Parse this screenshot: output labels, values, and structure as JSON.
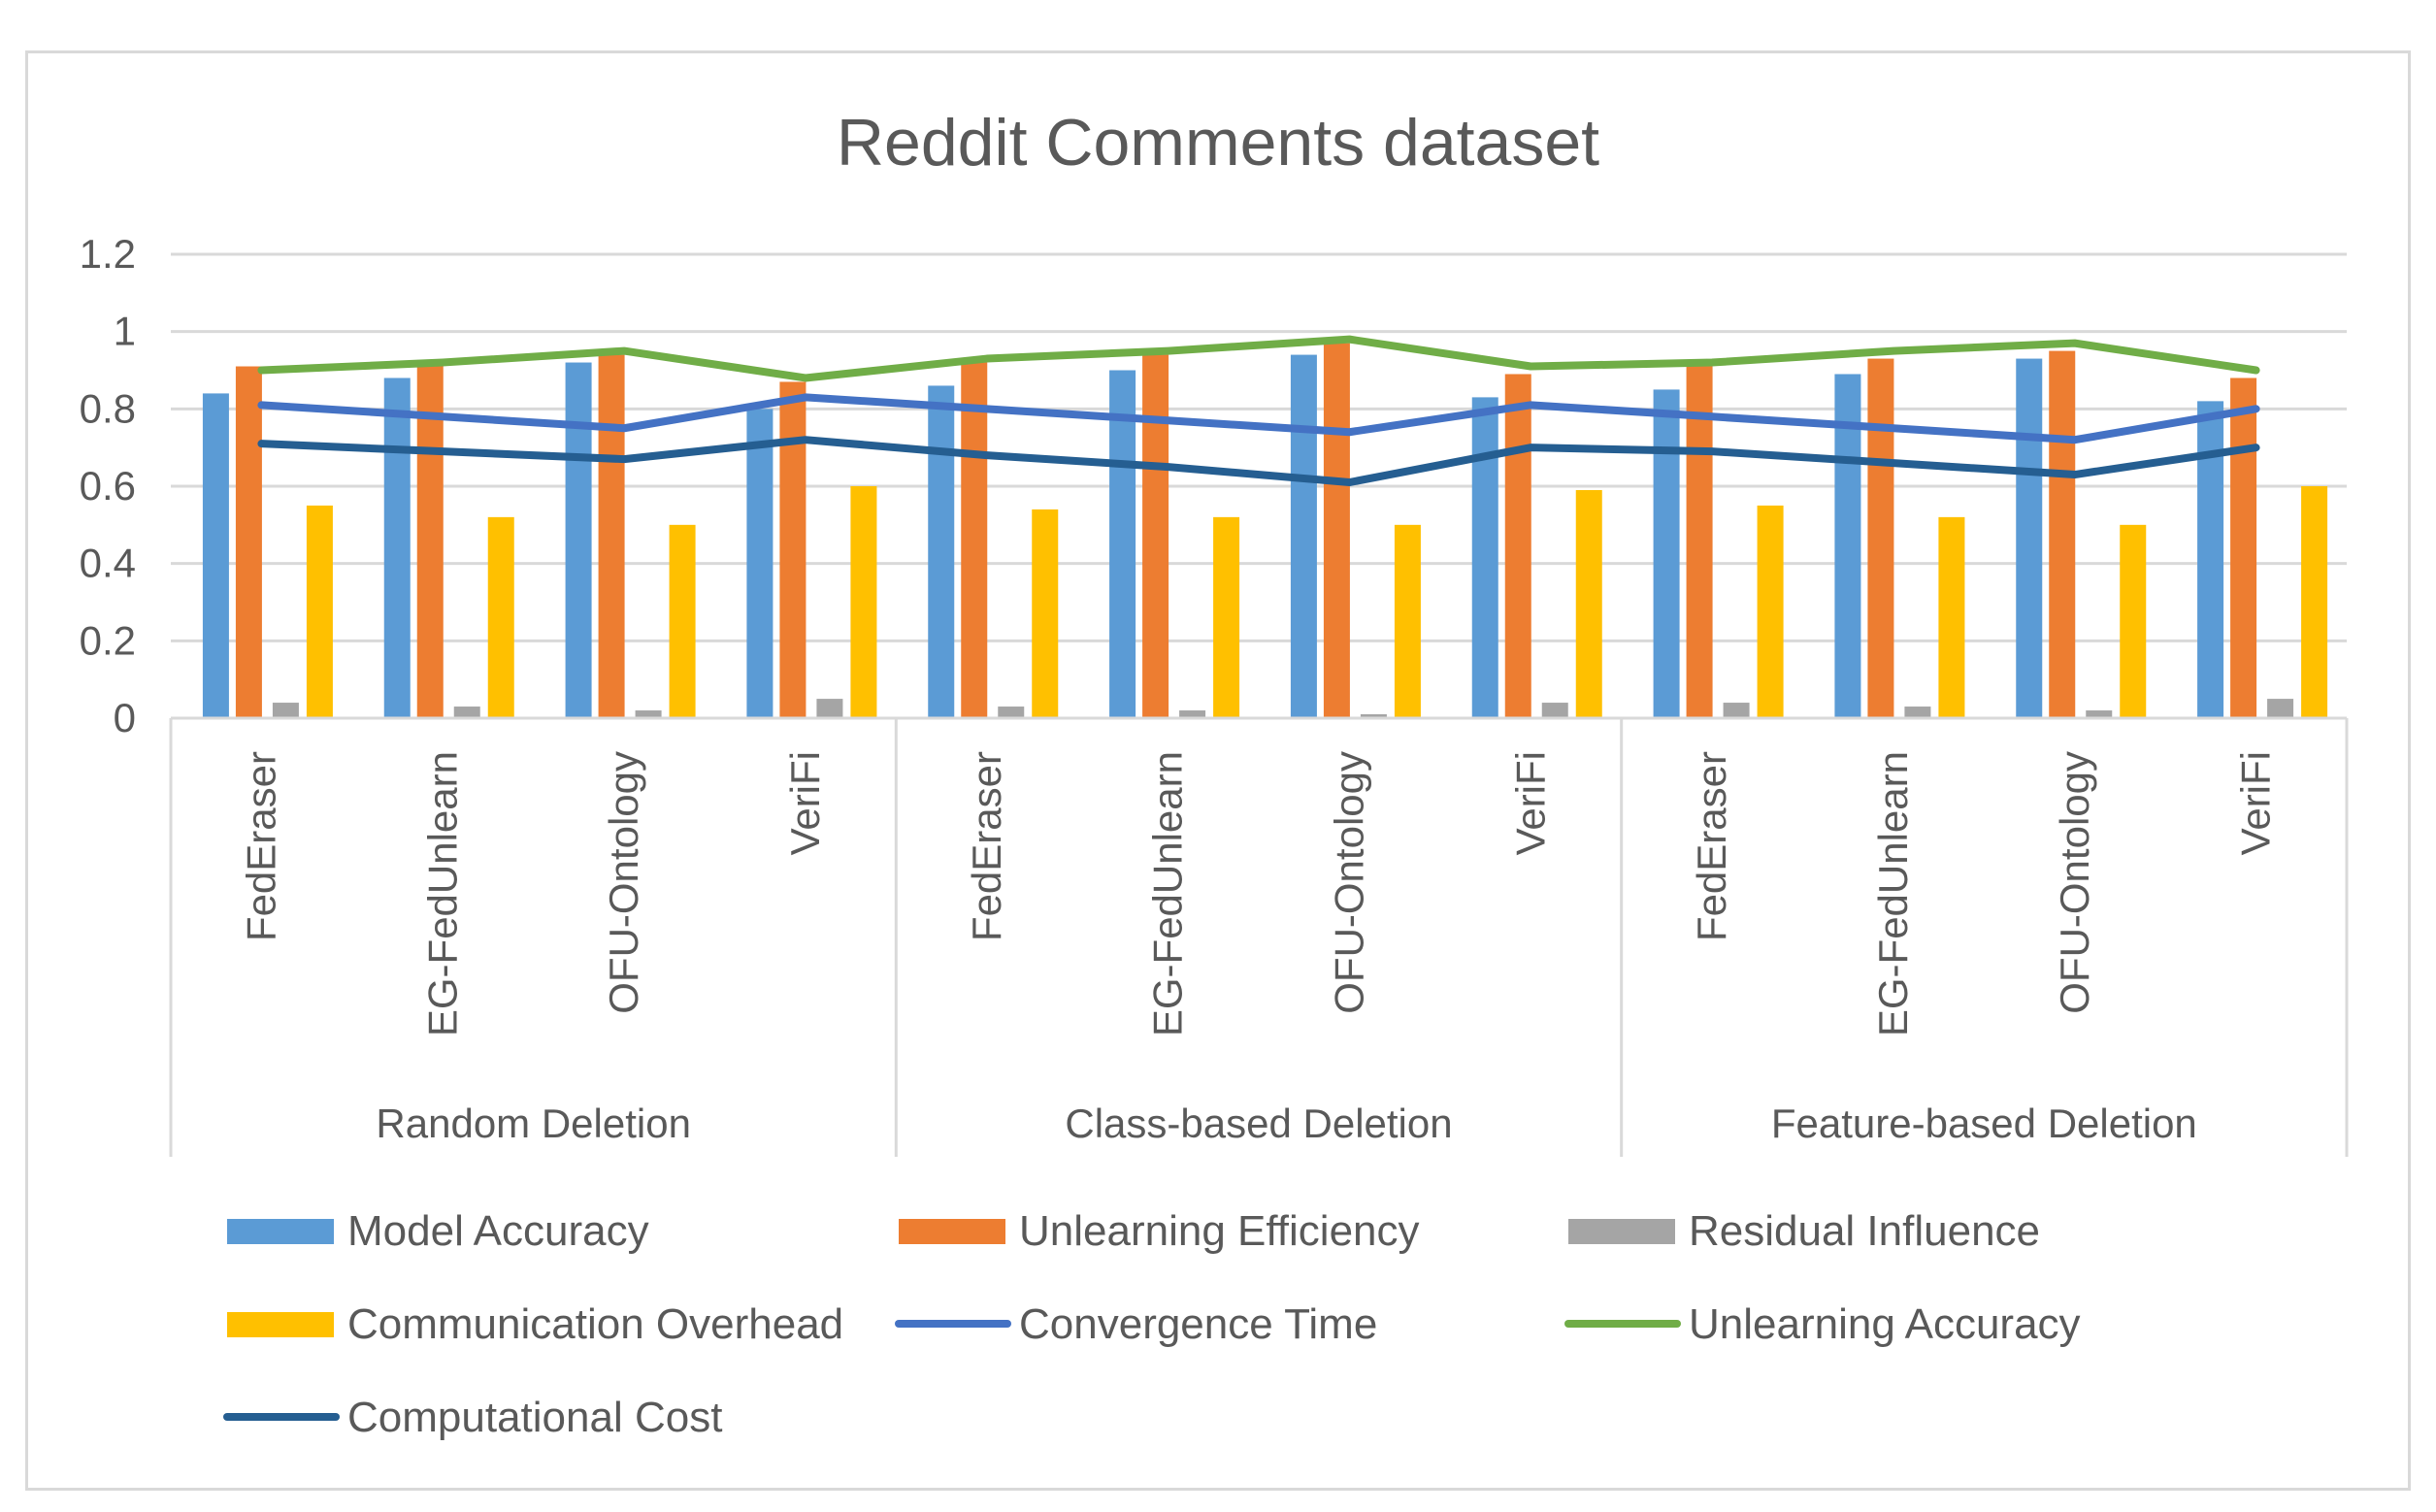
{
  "chart_data": {
    "type": "bar",
    "title": "Reddit Comments dataset",
    "xlabel": "",
    "ylabel": "",
    "ylim": [
      0,
      1.2
    ],
    "yticks": [
      "0",
      "0.2",
      "0.4",
      "0.6",
      "0.8",
      "1",
      "1.2"
    ],
    "grid": true,
    "legend_position": "bottom",
    "groups": [
      "Random Deletion",
      "Class-based Deletion",
      "Feature-based Deletion"
    ],
    "categories": [
      "FedEraser",
      "EG-FedUnlearn",
      "OFU-Ontology",
      "VeriFi",
      "FedEraser",
      "EG-FedUnlearn",
      "OFU-Ontology",
      "VeriFi",
      "FedEraser",
      "EG-FedUnlearn",
      "OFU-Ontology",
      "VeriFi"
    ],
    "bar_series": [
      {
        "name": "Model Accuracy",
        "color": "#5b9bd5",
        "values": [
          0.84,
          0.88,
          0.92,
          0.8,
          0.86,
          0.9,
          0.94,
          0.83,
          0.85,
          0.89,
          0.93,
          0.82
        ]
      },
      {
        "name": "Unlearning Efficiency",
        "color": "#ed7d31",
        "values": [
          0.91,
          0.92,
          0.94,
          0.87,
          0.92,
          0.94,
          0.97,
          0.89,
          0.91,
          0.93,
          0.95,
          0.88
        ]
      },
      {
        "name": "Residual Influence",
        "color": "#a5a5a5",
        "values": [
          0.04,
          0.03,
          0.02,
          0.05,
          0.03,
          0.02,
          0.01,
          0.04,
          0.04,
          0.03,
          0.02,
          0.05
        ]
      },
      {
        "name": "Communication Overhead",
        "color": "#ffc000",
        "values": [
          0.55,
          0.52,
          0.5,
          0.6,
          0.54,
          0.52,
          0.5,
          0.59,
          0.55,
          0.52,
          0.5,
          0.6
        ]
      }
    ],
    "line_series": [
      {
        "name": "Convergence Time",
        "color": "#4472c4",
        "values": [
          0.81,
          0.78,
          0.75,
          0.83,
          0.8,
          0.77,
          0.74,
          0.81,
          0.78,
          0.75,
          0.72,
          0.8
        ]
      },
      {
        "name": "Unlearning Accuracy",
        "color": "#70ad47",
        "values": [
          0.9,
          0.92,
          0.95,
          0.88,
          0.93,
          0.95,
          0.98,
          0.91,
          0.92,
          0.95,
          0.97,
          0.9
        ]
      },
      {
        "name": "Computational Cost",
        "color": "#255e91",
        "values": [
          0.71,
          0.69,
          0.67,
          0.72,
          0.68,
          0.65,
          0.61,
          0.7,
          0.69,
          0.66,
          0.63,
          0.7
        ]
      }
    ],
    "legend": [
      "Model Accuracy",
      "Unlearning Efficiency",
      "Residual Influence",
      "Communication Overhead",
      "Convergence Time",
      "Unlearning Accuracy",
      "Computational Cost"
    ]
  }
}
